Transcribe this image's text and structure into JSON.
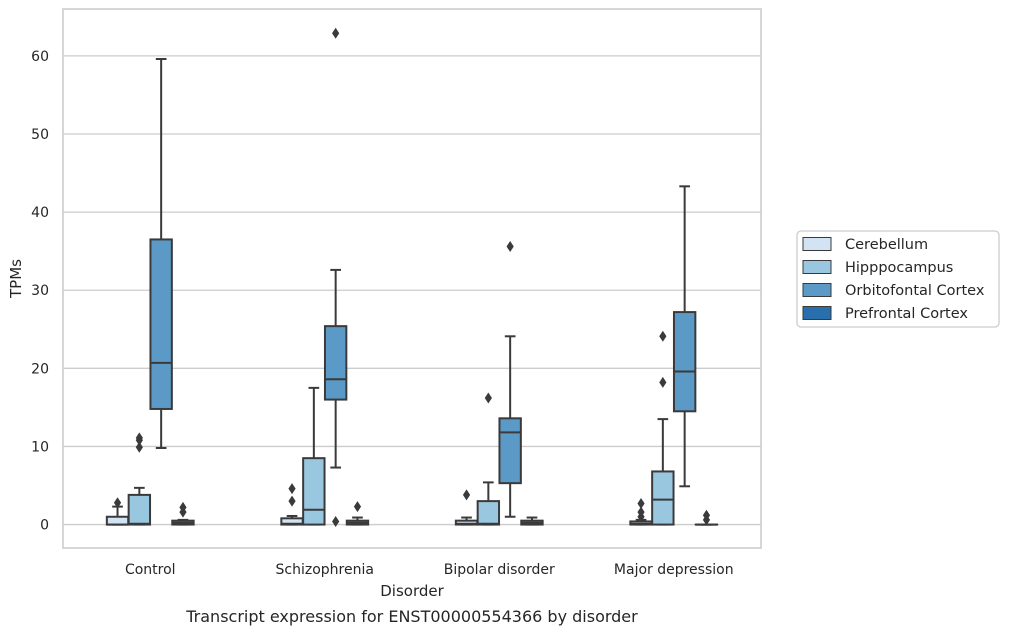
{
  "chart_data": {
    "type": "box",
    "caption": "Transcript expression for ENST00000554366 by disorder",
    "xlabel": "Disorder",
    "ylabel": "TPMs",
    "ylim": [
      -3,
      66
    ],
    "yticks": [
      0,
      10,
      20,
      30,
      40,
      50,
      60
    ],
    "grid": "horizontal",
    "legend_position": "right",
    "categories": [
      "Control",
      "Schizophrenia",
      "Bipolar disorder",
      "Major depression"
    ],
    "series": [
      {
        "name": "Cerebellum",
        "color": "#d2e3f3",
        "boxes": [
          {
            "whislo": 0,
            "q1": 0,
            "med": 0,
            "q3": 1.0,
            "whishi": 2.3,
            "fliers": [
              2.8
            ]
          },
          {
            "whislo": 0,
            "q1": 0,
            "med": 0.1,
            "q3": 0.8,
            "whishi": 1.1,
            "fliers": [
              3.0,
              4.6
            ]
          },
          {
            "whislo": 0,
            "q1": 0,
            "med": 0.1,
            "q3": 0.5,
            "whishi": 0.9,
            "fliers": [
              3.8
            ]
          },
          {
            "whislo": 0,
            "q1": 0,
            "med": 0.1,
            "q3": 0.4,
            "whishi": 0.6,
            "fliers": [
              1.0,
              1.6,
              2.7
            ]
          }
        ]
      },
      {
        "name": "Hipppocampus",
        "color": "#9ac7e0",
        "boxes": [
          {
            "whislo": 0,
            "q1": 0,
            "med": 0.1,
            "q3": 3.8,
            "whishi": 4.7,
            "fliers": [
              9.9,
              10.8,
              11.1
            ]
          },
          {
            "whislo": 0,
            "q1": 0,
            "med": 1.9,
            "q3": 8.5,
            "whishi": 17.5,
            "fliers": []
          },
          {
            "whislo": 0,
            "q1": 0,
            "med": 0.1,
            "q3": 3.0,
            "whishi": 5.4,
            "fliers": [
              16.2
            ]
          },
          {
            "whislo": 0,
            "q1": 0,
            "med": 3.2,
            "q3": 6.8,
            "whishi": 13.5,
            "fliers": [
              18.2,
              24.1
            ]
          }
        ]
      },
      {
        "name": "Orbitofontal Cortex",
        "color": "#5b9ac6",
        "boxes": [
          {
            "whislo": 9.8,
            "q1": 14.8,
            "med": 20.7,
            "q3": 36.5,
            "whishi": 59.6,
            "fliers": []
          },
          {
            "whislo": 7.3,
            "q1": 16.0,
            "med": 18.6,
            "q3": 25.4,
            "whishi": 32.6,
            "fliers": [
              0.4,
              62.9
            ]
          },
          {
            "whislo": 1.0,
            "q1": 5.3,
            "med": 11.8,
            "q3": 13.6,
            "whishi": 24.1,
            "fliers": [
              35.6
            ]
          },
          {
            "whislo": 4.9,
            "q1": 14.5,
            "med": 19.6,
            "q3": 27.2,
            "whishi": 43.3,
            "fliers": []
          }
        ]
      },
      {
        "name": "Prefrontal Cortex",
        "color": "#2a6fad",
        "boxes": [
          {
            "whislo": 0,
            "q1": 0,
            "med": 0.2,
            "q3": 0.5,
            "whishi": 0.6,
            "fliers": [
              1.6,
              2.2
            ]
          },
          {
            "whislo": 0,
            "q1": 0,
            "med": 0.2,
            "q3": 0.5,
            "whishi": 0.9,
            "fliers": [
              2.3
            ]
          },
          {
            "whislo": 0,
            "q1": 0,
            "med": 0.2,
            "q3": 0.5,
            "whishi": 0.9,
            "fliers": []
          },
          {
            "whislo": 0,
            "q1": 0,
            "med": 0,
            "q3": 0,
            "whishi": 0,
            "fliers": [
              0.6,
              1.2
            ]
          }
        ]
      }
    ]
  }
}
